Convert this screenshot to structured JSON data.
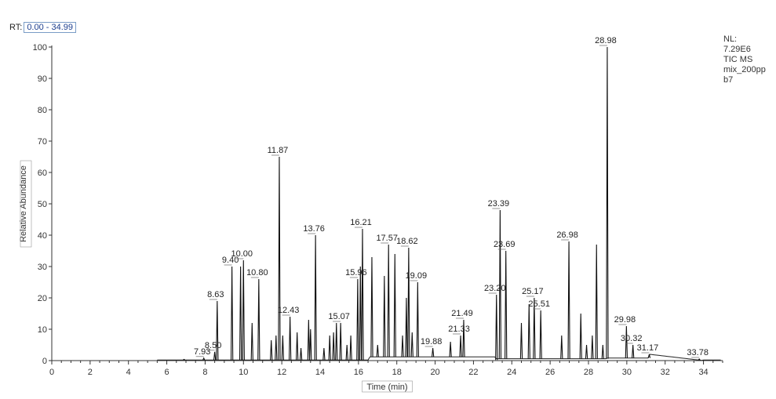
{
  "rt": {
    "label": "RT:",
    "range": "0.00 - 34.99"
  },
  "info": {
    "lines": [
      "NL:",
      "7.29E6",
      "TIC MS",
      "mix_200pp",
      "b7"
    ]
  },
  "chart_data": {
    "type": "line",
    "xlabel": "Time (min)",
    "ylabel": "Relative Abundance",
    "xlim": [
      0,
      35
    ],
    "ylim": [
      0,
      100
    ],
    "xticks": [
      0,
      2,
      4,
      6,
      8,
      10,
      12,
      14,
      16,
      18,
      20,
      22,
      24,
      26,
      28,
      30,
      32,
      34
    ],
    "yticks": [
      0,
      10,
      20,
      30,
      40,
      50,
      60,
      70,
      80,
      90,
      100
    ],
    "grid": false,
    "peaks": [
      {
        "x": 6.9,
        "y": 0.4
      },
      {
        "x": 7.93,
        "y": 0.8,
        "label": "7.93"
      },
      {
        "x": 8.5,
        "y": 2.8,
        "label": "8.50"
      },
      {
        "x": 8.63,
        "y": 19,
        "label": "8.63"
      },
      {
        "x": 9.4,
        "y": 30,
        "label": "9.40"
      },
      {
        "x": 9.85,
        "y": 30
      },
      {
        "x": 10.0,
        "y": 32,
        "label": "10.00"
      },
      {
        "x": 10.45,
        "y": 12
      },
      {
        "x": 10.8,
        "y": 26,
        "label": "10.80"
      },
      {
        "x": 11.45,
        "y": 6.5
      },
      {
        "x": 11.7,
        "y": 8
      },
      {
        "x": 11.87,
        "y": 65,
        "label": "11.87"
      },
      {
        "x": 12.05,
        "y": 8
      },
      {
        "x": 12.43,
        "y": 14,
        "label": "12.43"
      },
      {
        "x": 12.8,
        "y": 9
      },
      {
        "x": 13.0,
        "y": 4
      },
      {
        "x": 13.4,
        "y": 13
      },
      {
        "x": 13.5,
        "y": 10
      },
      {
        "x": 13.76,
        "y": 40,
        "label": "13.76"
      },
      {
        "x": 14.2,
        "y": 4
      },
      {
        "x": 14.5,
        "y": 8
      },
      {
        "x": 14.7,
        "y": 9
      },
      {
        "x": 14.85,
        "y": 12
      },
      {
        "x": 15.07,
        "y": 12,
        "label": "15.07"
      },
      {
        "x": 15.4,
        "y": 5
      },
      {
        "x": 15.6,
        "y": 8
      },
      {
        "x": 15.96,
        "y": 26,
        "label": "15.96"
      },
      {
        "x": 16.1,
        "y": 30
      },
      {
        "x": 16.21,
        "y": 42,
        "label": "16.21"
      },
      {
        "x": 16.7,
        "y": 33
      },
      {
        "x": 17.0,
        "y": 5
      },
      {
        "x": 17.35,
        "y": 27
      },
      {
        "x": 17.57,
        "y": 37,
        "label": "17.57"
      },
      {
        "x": 17.9,
        "y": 34
      },
      {
        "x": 18.3,
        "y": 8
      },
      {
        "x": 18.5,
        "y": 20
      },
      {
        "x": 18.62,
        "y": 36,
        "label": "18.62"
      },
      {
        "x": 18.8,
        "y": 9
      },
      {
        "x": 19.09,
        "y": 25,
        "label": "19.09"
      },
      {
        "x": 19.88,
        "y": 4,
        "label": "19.88"
      },
      {
        "x": 20.8,
        "y": 6
      },
      {
        "x": 21.33,
        "y": 8,
        "label": "21.33"
      },
      {
        "x": 21.49,
        "y": 13,
        "label": "21.49"
      },
      {
        "x": 23.2,
        "y": 21,
        "label": "23.20"
      },
      {
        "x": 23.39,
        "y": 48,
        "label": "23.39"
      },
      {
        "x": 23.69,
        "y": 35,
        "label": "23.69"
      },
      {
        "x": 24.5,
        "y": 12
      },
      {
        "x": 24.9,
        "y": 18
      },
      {
        "x": 25.17,
        "y": 20,
        "label": "25.17"
      },
      {
        "x": 25.51,
        "y": 16,
        "label": "25.51"
      },
      {
        "x": 26.6,
        "y": 8
      },
      {
        "x": 26.98,
        "y": 38,
        "label": "26.98"
      },
      {
        "x": 27.6,
        "y": 15
      },
      {
        "x": 27.9,
        "y": 5
      },
      {
        "x": 28.2,
        "y": 8
      },
      {
        "x": 28.42,
        "y": 37
      },
      {
        "x": 28.75,
        "y": 5
      },
      {
        "x": 28.98,
        "y": 100,
        "label": "28.98"
      },
      {
        "x": 29.98,
        "y": 11,
        "label": "29.98"
      },
      {
        "x": 30.32,
        "y": 5,
        "label": "30.32"
      },
      {
        "x": 31.17,
        "y": 2,
        "label": "31.17"
      },
      {
        "x": 33.78,
        "y": 0.5,
        "label": "33.78"
      }
    ]
  }
}
